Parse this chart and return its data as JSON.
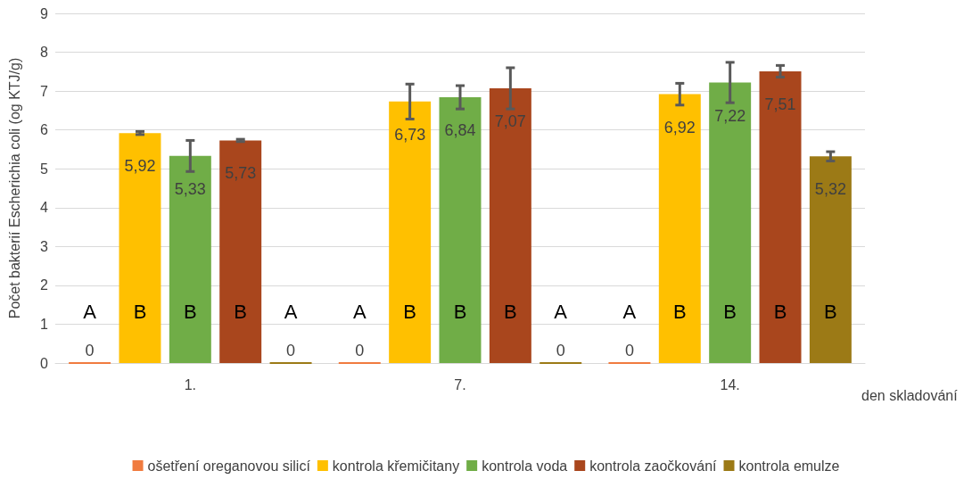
{
  "chart_data": {
    "type": "bar",
    "ylabel": "Počet bakterií Escherichia coli (og KTJ/g)",
    "xlabel": "den skladování",
    "categories": [
      "1.",
      "7.",
      "14."
    ],
    "series": [
      {
        "name": "ošetření oreganovou silicí",
        "color": "#f07b3f",
        "values": [
          0,
          0,
          0
        ],
        "value_labels": [
          "0",
          "0",
          "0"
        ],
        "errors": [
          null,
          null,
          null
        ]
      },
      {
        "name": "kontrola křemičitany",
        "color": "#ffc000",
        "values": [
          5.92,
          6.73,
          6.92
        ],
        "value_labels": [
          "5,92",
          "6,73",
          "6,92"
        ],
        "errors": [
          0.04,
          0.45,
          0.28
        ]
      },
      {
        "name": "kontrola voda",
        "color": "#70ad47",
        "values": [
          5.33,
          6.84,
          7.22
        ],
        "value_labels": [
          "5,33",
          "6,84",
          "7,22"
        ],
        "errors": [
          0.4,
          0.3,
          0.52
        ]
      },
      {
        "name": "kontrola zaočkování",
        "color": "#a9461d",
        "values": [
          5.73,
          7.07,
          7.51
        ],
        "value_labels": [
          "5,73",
          "7,07",
          "7,51"
        ],
        "errors": [
          0.03,
          0.53,
          0.15
        ]
      },
      {
        "name": "kontrola emulze",
        "color": "#9c7a16",
        "values": [
          0,
          0,
          5.32
        ],
        "value_labels": [
          "0",
          "0",
          "5,32"
        ],
        "errors": [
          null,
          null,
          0.12
        ]
      }
    ],
    "annotations": [
      "A",
      "B",
      "B",
      "B",
      "A",
      "A",
      "B",
      "B",
      "B",
      "A",
      "A",
      "B",
      "B",
      "B",
      "B"
    ],
    "ylim": [
      0,
      9
    ],
    "yticks": [
      0,
      1,
      2,
      3,
      4,
      5,
      6,
      7,
      8,
      9
    ],
    "grid": "y",
    "legend": "bottom"
  }
}
